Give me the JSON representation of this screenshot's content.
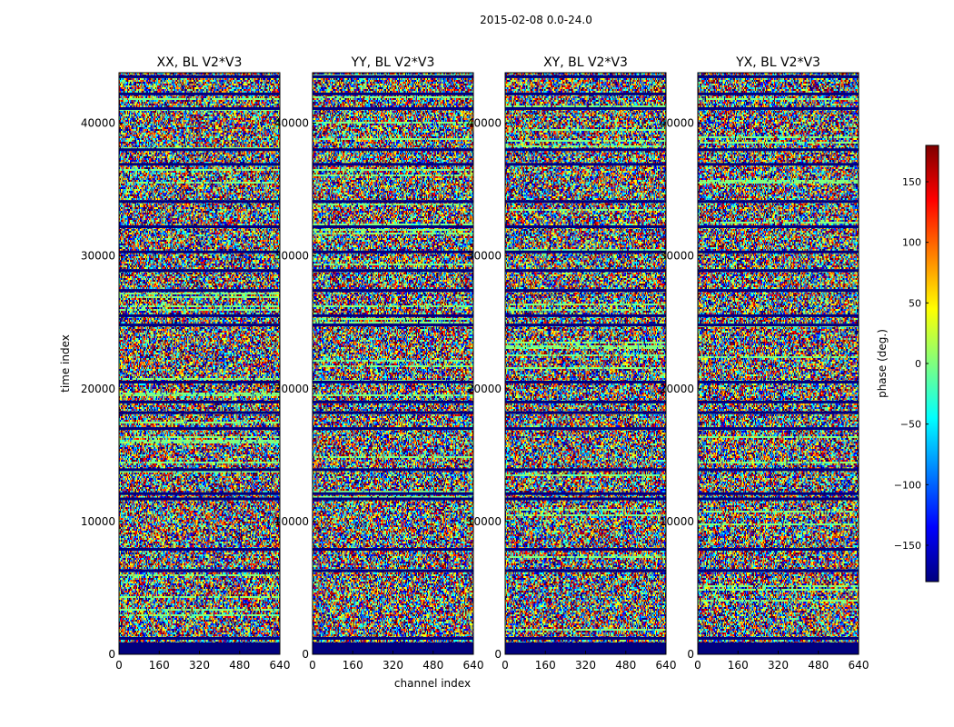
{
  "figure_title": "2015-02-08 0.0-24.0",
  "chart_data": {
    "type": "heatmap",
    "suptitle": "2015-02-08 0.0-24.0",
    "xlabel": "channel index",
    "ylabel": "time index",
    "xlim": [
      0,
      640
    ],
    "ylim": [
      0,
      43800
    ],
    "xticks": [
      "0",
      "160",
      "320",
      "480",
      "640"
    ],
    "yticks": [
      "0",
      "10000",
      "20000",
      "30000",
      "40000"
    ],
    "panels": [
      {
        "title": "XX, BL V2*V3",
        "polarization": "XX"
      },
      {
        "title": "YY, BL V2*V3",
        "polarization": "YY"
      },
      {
        "title": "XY, BL V2*V3",
        "polarization": "XY"
      },
      {
        "title": "YX, BL V2*V3",
        "polarization": "YX"
      }
    ],
    "colorbar": {
      "label": "phase (deg.)",
      "vmin": -180,
      "vmax": 180,
      "ticks": [
        "150",
        "100",
        "50",
        "0",
        "−50",
        "−100",
        "−150"
      ],
      "colormap": "jet"
    },
    "colormap_stops": [
      "#00007f",
      "#0000ff",
      "#007fff",
      "#00ffff",
      "#7fff7f",
      "#ffff00",
      "#ff7f00",
      "#ff0000",
      "#7f0000"
    ]
  }
}
